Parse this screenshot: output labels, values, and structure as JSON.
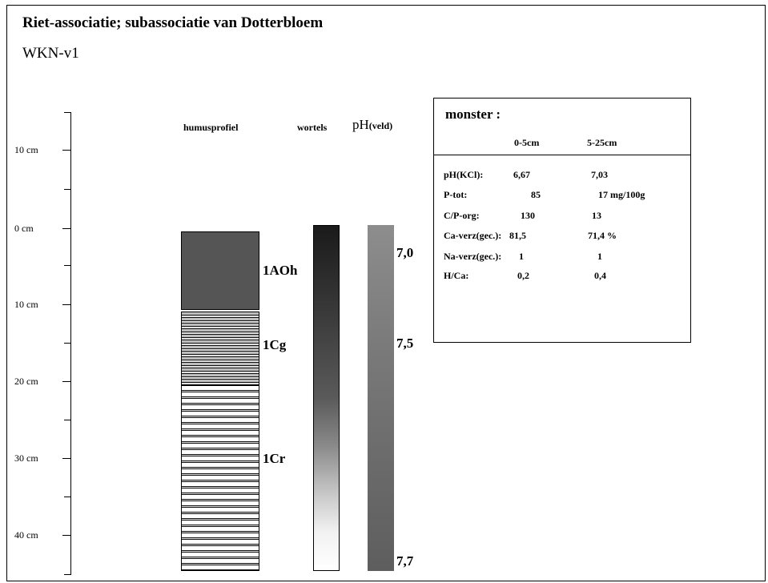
{
  "title": "Riet-associatie; subassociatie van Dotterbloem",
  "subtitle": "WKN-v1",
  "depth_axis": {
    "labels": [
      "10 cm",
      "0 cm",
      "10 cm",
      "20 cm",
      "30 cm",
      "40 cm"
    ]
  },
  "columns": {
    "humus": "humusprofiel",
    "roots": "wortels",
    "ph": "pH",
    "ph_sub": "(veld)"
  },
  "horizons": [
    {
      "code": "1AOh",
      "from_cm": 0,
      "to_cm": 10
    },
    {
      "code": "1Cg",
      "from_cm": 10,
      "to_cm": 20
    },
    {
      "code": "1Cr",
      "from_cm": 20,
      "to_cm": 45
    }
  ],
  "ph_field": [
    "7,0",
    "7,5",
    "7,7"
  ],
  "sample": {
    "title": "monster   :",
    "col1": "0-5cm",
    "col2": "5-25cm",
    "rows": [
      {
        "label": "pH(KCl):",
        "v1": "6,67",
        "v2": "7,03"
      },
      {
        "label": "P-tot:",
        "v1": "85",
        "v2": "17 mg/100g"
      },
      {
        "label": "C/P-org:",
        "v1": "130",
        "v2": "13"
      },
      {
        "label": "Ca-verz(gec.):",
        "v1": "81,5",
        "v2": "71,4 %"
      },
      {
        "label": "Na-verz(gec.):",
        "v1": "1",
        "v2": "1"
      },
      {
        "label": "H/Ca:",
        "v1": "0,2",
        "v2": "0,4"
      }
    ]
  },
  "colors": {
    "aoh_fill": "#555555",
    "roots_top": "#1a1a1a",
    "ph_bar": "#7a7a7a"
  }
}
